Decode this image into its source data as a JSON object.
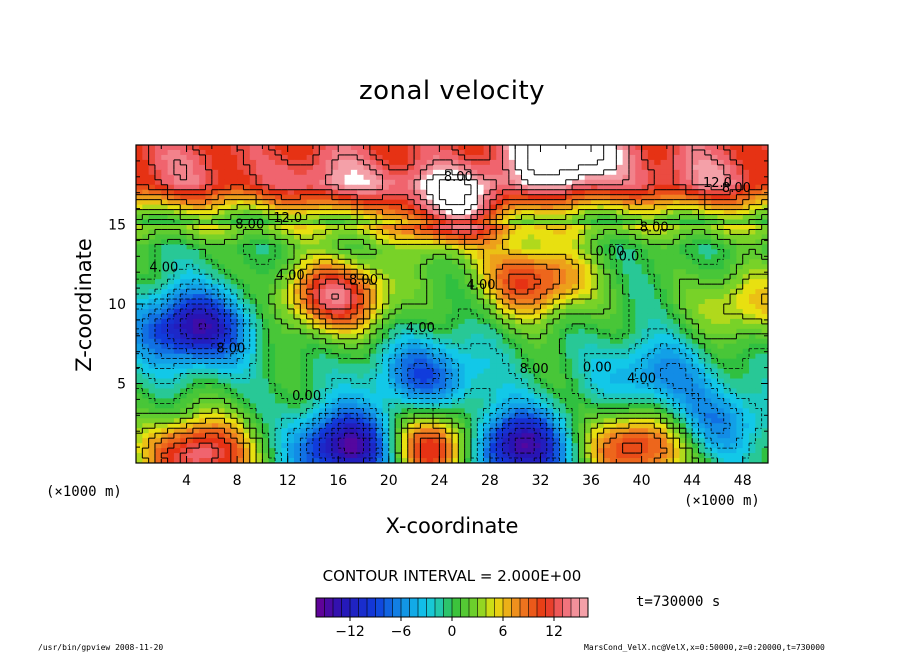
{
  "chart_data": {
    "type": "heatmap",
    "title": "zonal velocity",
    "xlabel": "X-coordinate",
    "ylabel": "Z-coordinate",
    "x_unit_left": "(×1000 m)",
    "x_unit_right": "(×1000 m)",
    "xlim": [
      0,
      50
    ],
    "ylim": [
      0,
      20
    ],
    "x_ticks": [
      4,
      8,
      12,
      16,
      20,
      24,
      28,
      32,
      36,
      40,
      44,
      48
    ],
    "y_ticks": [
      5,
      10,
      15
    ],
    "contour_interval_text": "CONTOUR INTERVAL = 2.000E+00",
    "contour_labels": [
      {
        "x": 25.5,
        "y": 18.0,
        "text": "8.00"
      },
      {
        "x": 46.0,
        "y": 17.6,
        "text": "12.0"
      },
      {
        "x": 47.5,
        "y": 17.3,
        "text": "8.00"
      },
      {
        "x": 9.0,
        "y": 15.0,
        "text": "8.00"
      },
      {
        "x": 12.0,
        "y": 15.4,
        "text": "12.0"
      },
      {
        "x": 2.2,
        "y": 12.3,
        "text": "4.00"
      },
      {
        "x": 12.2,
        "y": 11.8,
        "text": "4.00"
      },
      {
        "x": 18.0,
        "y": 11.5,
        "text": "8.00"
      },
      {
        "x": 27.3,
        "y": 11.2,
        "text": "4.00"
      },
      {
        "x": 22.5,
        "y": 8.5,
        "text": "4.00"
      },
      {
        "x": 7.5,
        "y": 7.2,
        "text": "8.00"
      },
      {
        "x": 31.5,
        "y": 5.9,
        "text": "8.00"
      },
      {
        "x": 36.5,
        "y": 6.0,
        "text": "0.00"
      },
      {
        "x": 13.5,
        "y": 4.2,
        "text": "0.00"
      },
      {
        "x": 40.0,
        "y": 5.3,
        "text": "4.00"
      },
      {
        "x": 37.5,
        "y": 13.3,
        "text": "0.00"
      },
      {
        "x": 39.0,
        "y": 13.0,
        "text": "0.0"
      },
      {
        "x": 41.0,
        "y": 14.8,
        "text": "8.00"
      }
    ],
    "field_features": [
      {
        "x": 25.0,
        "y": 15.8,
        "value": 22
      },
      {
        "x": 34.0,
        "y": 19.5,
        "value": 20
      },
      {
        "x": 16.0,
        "y": 17.5,
        "value": 14
      },
      {
        "x": 45.0,
        "y": 18.0,
        "value": 13
      },
      {
        "x": 4.0,
        "y": 18.5,
        "value": 12
      },
      {
        "x": 15.8,
        "y": 10.5,
        "value": 13
      },
      {
        "x": 31.5,
        "y": 11.5,
        "value": 11
      },
      {
        "x": 48.5,
        "y": 10.0,
        "value": 6
      },
      {
        "x": 4.5,
        "y": 8.5,
        "value": -14
      },
      {
        "x": 23.0,
        "y": 5.5,
        "value": -8
      },
      {
        "x": 41.0,
        "y": 5.5,
        "value": -6
      },
      {
        "x": 17.0,
        "y": 1.0,
        "value": -16
      },
      {
        "x": 30.0,
        "y": 1.0,
        "value": -16
      },
      {
        "x": 46.0,
        "y": 2.5,
        "value": -6
      },
      {
        "x": 5.0,
        "y": 0.5,
        "value": 14
      },
      {
        "x": 23.5,
        "y": 1.0,
        "value": 14
      },
      {
        "x": 39.5,
        "y": 1.0,
        "value": 12
      }
    ],
    "colorbar": {
      "ticks": [
        -12,
        -6,
        0,
        6,
        12
      ],
      "tick_labels": [
        "−12",
        "−6",
        "0",
        "6",
        "12"
      ],
      "min": -16,
      "max": 16,
      "step": 1
    },
    "colors": {
      "min": "#6a0094",
      "blue": "#1030d0",
      "cyan": "#12c8e8",
      "green": "#30c040",
      "yellow": "#e8e010",
      "orange": "#f08020",
      "red": "#e02010",
      "max": "#f09aa0"
    }
  },
  "time_label": "t=730000 s",
  "footer_left": "/usr/bin/gpview  2008-11-20",
  "footer_right": "MarsCond_VelX.nc@VelX,x=0:50000,z=0:20000,t=730000"
}
